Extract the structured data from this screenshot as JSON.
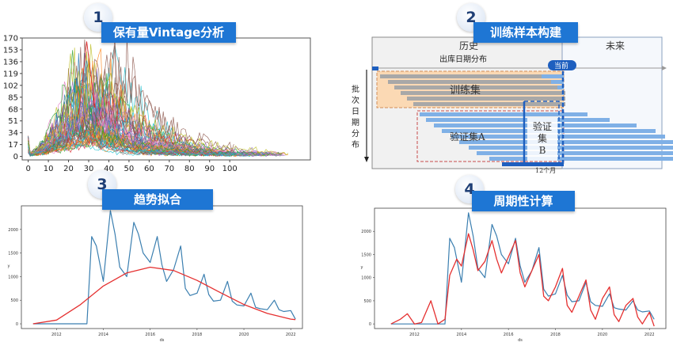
{
  "panels": [
    {
      "number": "1",
      "title": "保有量Vintage分析"
    },
    {
      "number": "2",
      "title": "训练样本构建"
    },
    {
      "number": "3",
      "title": "趋势拟合"
    },
    {
      "number": "4",
      "title": "周期性计算"
    }
  ],
  "colors": {
    "banner": "#1e76d4",
    "fit_line": "#e53030",
    "series_line": "#3b7fb0",
    "train_fill": "#fbd9b4",
    "bar_blue": "#7fb0e6",
    "bar_gray": "#a8a8a8"
  },
  "chart_data": [
    {
      "type": "line",
      "title": "",
      "xlabel": "",
      "ylabel": "",
      "x_ticks": [
        0,
        10,
        20,
        30,
        40,
        50,
        60,
        70,
        80,
        90,
        100
      ],
      "y_ticks": [
        0,
        17,
        34,
        51,
        68,
        85,
        102,
        119,
        136,
        153,
        170
      ],
      "xlim": [
        -3,
        140
      ],
      "ylim": [
        -5,
        170
      ],
      "series_count": 60,
      "envelope": {
        "peak_x": 29,
        "peak_y": 165,
        "note": "many overlapping vintage curves"
      }
    },
    {
      "type": "line",
      "title": "",
      "xlabel": "ds",
      "ylabel": "y",
      "x_ticks": [
        "2012",
        "2014",
        "2016",
        "2018",
        "2020",
        "2022"
      ],
      "y_ticks": [
        "0",
        "500",
        "1000",
        "1500",
        "2000"
      ],
      "ylim": [
        -100,
        2500
      ],
      "series": [
        {
          "role": "actual",
          "x": [
            2011.0,
            2012.0,
            2013.0,
            2013.3,
            2013.5,
            2013.7,
            2014.0,
            2014.3,
            2014.5,
            2014.7,
            2015.0,
            2015.3,
            2015.5,
            2015.7,
            2016.0,
            2016.3,
            2016.5,
            2016.7,
            2017.0,
            2017.3,
            2017.5,
            2017.7,
            2018.0,
            2018.3,
            2018.5,
            2018.7,
            2019.0,
            2019.3,
            2019.5,
            2019.7,
            2020.0,
            2020.3,
            2020.5,
            2020.7,
            2021.0,
            2021.3,
            2021.5,
            2021.7,
            2022.0,
            2022.2
          ],
          "y": [
            0,
            0,
            0,
            0,
            1850,
            1650,
            900,
            2400,
            1900,
            1200,
            1000,
            2150,
            1900,
            1500,
            1300,
            1850,
            1250,
            900,
            1150,
            1650,
            750,
            600,
            650,
            1050,
            620,
            480,
            500,
            900,
            480,
            400,
            380,
            650,
            350,
            320,
            300,
            500,
            300,
            260,
            280,
            100
          ]
        },
        {
          "role": "trend",
          "x": [
            2011.0,
            2012.0,
            2013.0,
            2014.0,
            2015.0,
            2016.0,
            2017.0,
            2018.0,
            2019.0,
            2020.0,
            2021.0,
            2022.0,
            2022.2
          ],
          "y": [
            0,
            80,
            400,
            800,
            1080,
            1200,
            1130,
            920,
            660,
            410,
            220,
            100,
            90
          ]
        }
      ]
    },
    {
      "type": "line",
      "title": "",
      "xlabel": "ds",
      "ylabel": "y",
      "x_ticks": [
        "2012",
        "2014",
        "2016",
        "2018",
        "2020",
        "2022"
      ],
      "y_ticks": [
        "0",
        "500",
        "1000",
        "1500",
        "2000"
      ],
      "ylim": [
        -100,
        2500
      ],
      "series": [
        {
          "role": "actual",
          "x": [
            2011.0,
            2012.0,
            2013.0,
            2013.3,
            2013.5,
            2013.7,
            2014.0,
            2014.3,
            2014.5,
            2014.7,
            2015.0,
            2015.3,
            2015.5,
            2015.7,
            2016.0,
            2016.3,
            2016.5,
            2016.7,
            2017.0,
            2017.3,
            2017.5,
            2017.7,
            2018.0,
            2018.3,
            2018.5,
            2018.7,
            2019.0,
            2019.3,
            2019.5,
            2019.7,
            2020.0,
            2020.3,
            2020.5,
            2020.7,
            2021.0,
            2021.3,
            2021.5,
            2021.7,
            2022.0,
            2022.2
          ],
          "y": [
            0,
            0,
            0,
            0,
            1850,
            1650,
            900,
            2400,
            1900,
            1200,
            1000,
            2150,
            1900,
            1500,
            1300,
            1850,
            1250,
            900,
            1150,
            1650,
            750,
            600,
            650,
            1050,
            620,
            480,
            500,
            900,
            480,
            400,
            380,
            650,
            350,
            320,
            300,
            500,
            300,
            260,
            280,
            100
          ]
        },
        {
          "role": "fitted",
          "x": [
            2011.0,
            2011.4,
            2011.7,
            2012.0,
            2012.3,
            2012.7,
            2013.0,
            2013.3,
            2013.5,
            2013.8,
            2014.0,
            2014.3,
            2014.5,
            2014.7,
            2015.0,
            2015.3,
            2015.5,
            2015.7,
            2016.0,
            2016.3,
            2016.5,
            2016.7,
            2017.0,
            2017.3,
            2017.5,
            2017.7,
            2018.0,
            2018.3,
            2018.5,
            2018.7,
            2019.0,
            2019.3,
            2019.5,
            2019.7,
            2020.0,
            2020.3,
            2020.5,
            2020.7,
            2021.0,
            2021.3,
            2021.5,
            2021.7,
            2022.0,
            2022.2
          ],
          "y": [
            0,
            100,
            220,
            0,
            30,
            500,
            0,
            100,
            1050,
            1400,
            1250,
            1950,
            1600,
            1150,
            1350,
            1800,
            1400,
            1100,
            1450,
            1800,
            1100,
            800,
            1150,
            1500,
            600,
            500,
            800,
            1200,
            400,
            250,
            600,
            950,
            300,
            100,
            550,
            800,
            200,
            50,
            400,
            550,
            150,
            0,
            250,
            -50
          ]
        }
      ]
    }
  ],
  "diagram": {
    "history_label": "历史",
    "future_label": "未来",
    "out_date_label": "出库日期分布",
    "now_label": "当前",
    "batch_label": [
      "批",
      "次",
      "日",
      "期",
      "分",
      "布"
    ],
    "train_label": "训练集",
    "val_a_label": "验证集A",
    "val_b_label": [
      "验证",
      "集",
      "B"
    ],
    "twelve_months_label": "12个月"
  }
}
